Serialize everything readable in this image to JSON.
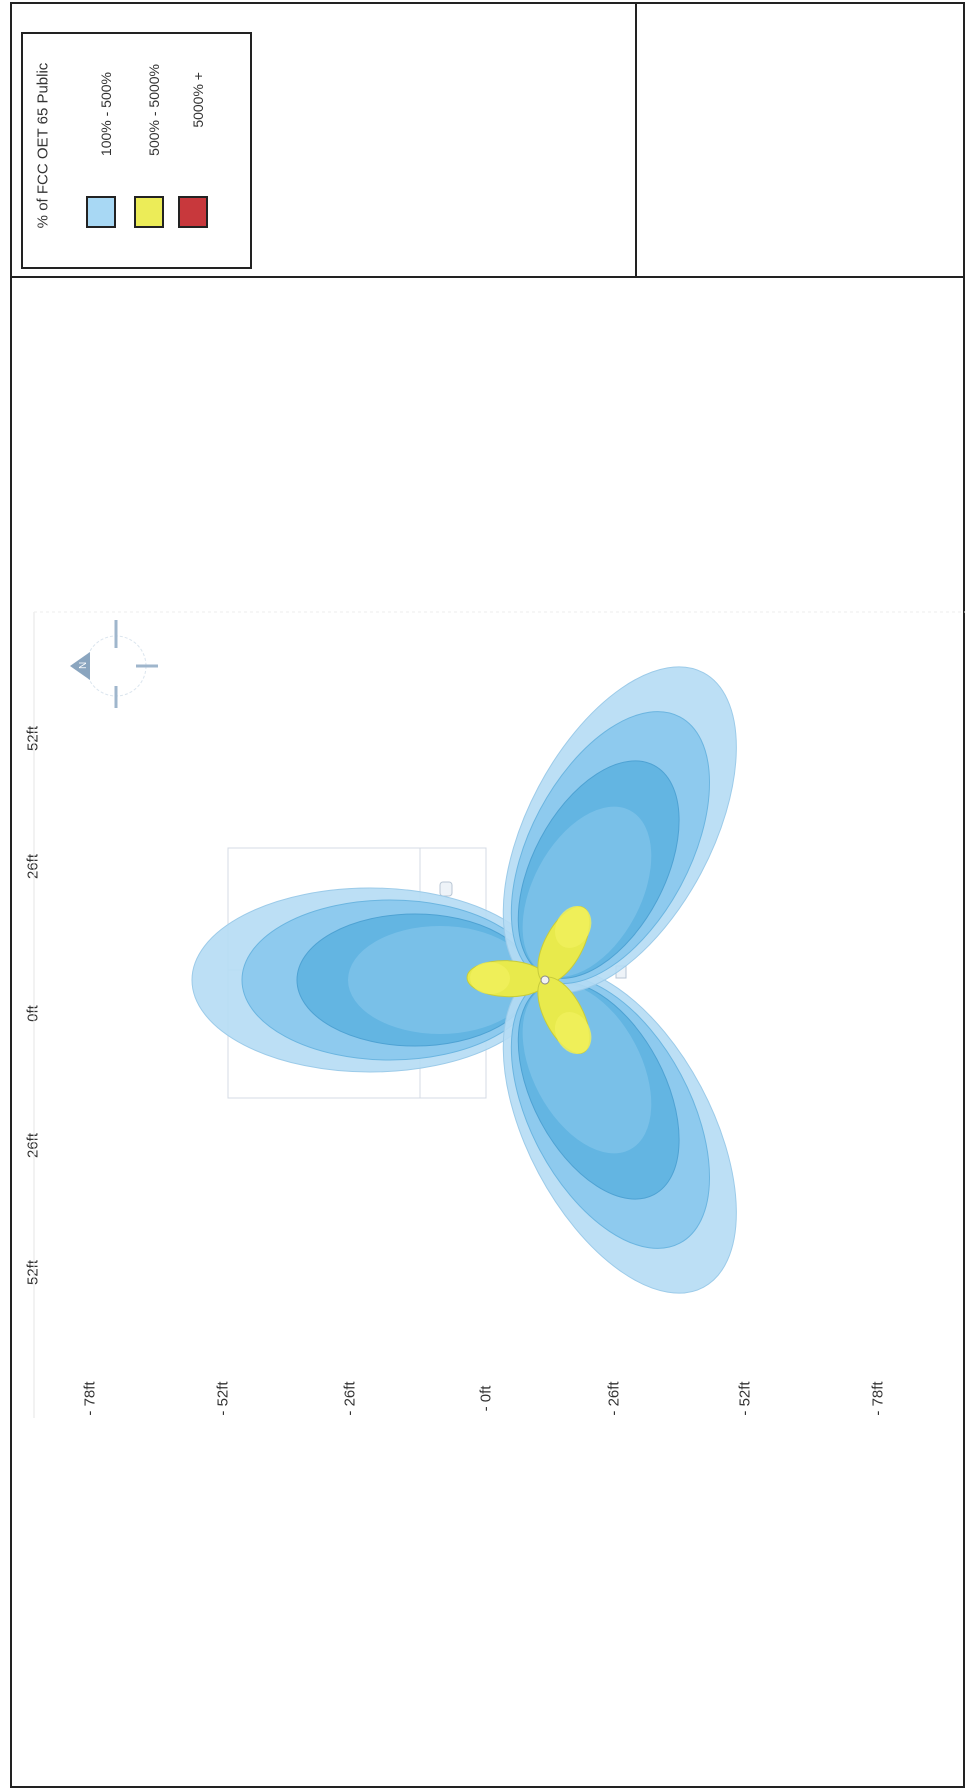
{
  "legend": {
    "title": "% of FCC OET 65 Public",
    "items": [
      {
        "label": "100% - 500%",
        "color": "#a8d8f4"
      },
      {
        "label": "500% - 5000%",
        "color": "#ecec58"
      },
      {
        "label": "5000% +",
        "color": "#c8383c"
      }
    ]
  },
  "axes": {
    "horizontal_ticks": [
      "52ft",
      "26ft",
      "0ft",
      "26ft",
      "52ft"
    ],
    "vertical_ticks": [
      "- 78ft",
      "- 52ft",
      "- 26ft",
      "- 0ft",
      "- 26ft",
      "- 52ft",
      "- 78ft"
    ]
  },
  "compass": {
    "label": "N",
    "icon": "north-arrow-icon"
  },
  "colors": {
    "lobe_outer": "#b5dcf4",
    "lobe_mid": "#7cc3ea",
    "lobe_inner": "#52acdc",
    "lobe_core": "#3f9fd4",
    "near_field": "#e8ea4c",
    "frame": "#222222"
  }
}
